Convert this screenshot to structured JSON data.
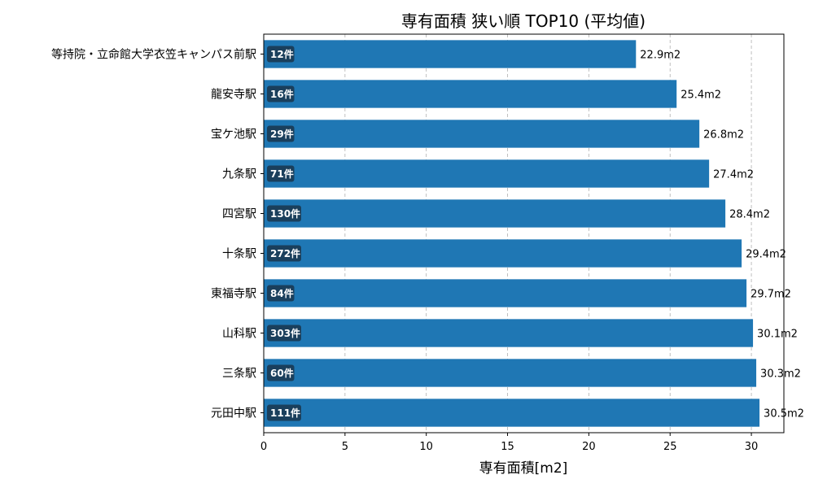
{
  "chart_data": {
    "type": "bar",
    "orientation": "horizontal",
    "title": "専有面積 狭い順 TOP10 (平均値)",
    "xlabel": "専有面積[m2]",
    "ylabel": "",
    "xlim": [
      0,
      32
    ],
    "xticks": [
      0,
      5,
      10,
      15,
      20,
      25,
      30
    ],
    "grid": "x-dashed",
    "bar_color": "#1f77b4",
    "badge_color": "#1a3f5c",
    "categories": [
      "等持院・立命館大学衣笠キャンパス前駅",
      "龍安寺駅",
      "宝ケ池駅",
      "九条駅",
      "四宮駅",
      "十条駅",
      "東福寺駅",
      "山科駅",
      "三条駅",
      "元田中駅"
    ],
    "values": [
      22.9,
      25.4,
      26.8,
      27.4,
      28.4,
      29.4,
      29.7,
      30.1,
      30.3,
      30.5
    ],
    "value_labels": [
      "22.9m2",
      "25.4m2",
      "26.8m2",
      "27.4m2",
      "28.4m2",
      "29.4m2",
      "29.7m2",
      "30.1m2",
      "30.3m2",
      "30.5m2"
    ],
    "counts": [
      "12件",
      "16件",
      "29件",
      "71件",
      "130件",
      "272件",
      "84件",
      "303件",
      "60件",
      "111件"
    ]
  }
}
